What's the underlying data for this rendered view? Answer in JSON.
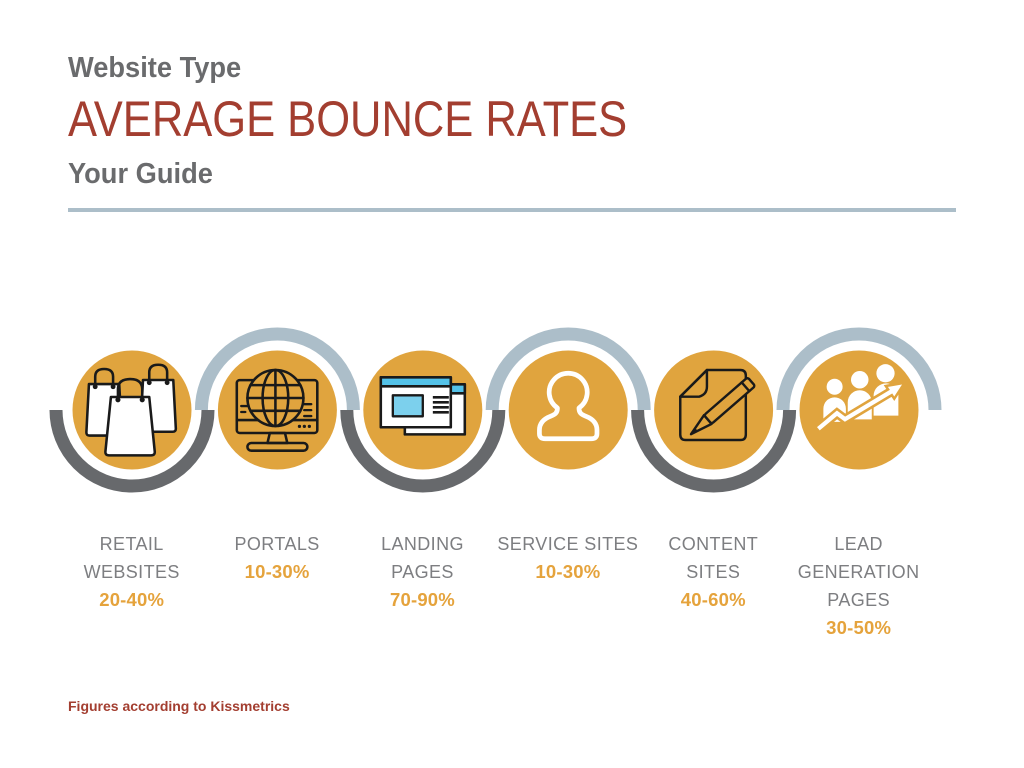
{
  "header": {
    "eyebrow": "Website Type",
    "title": "AVERAGE BOUNCE RATES",
    "subtitle": "Your Guide"
  },
  "footer": {
    "source_note": "Figures according to Kissmetrics"
  },
  "colors": {
    "accent_gold": "#E0A43E",
    "title_red": "#A33E30",
    "heading_gray": "#6A6B6D",
    "label_gray": "#7D7E81",
    "arc_dark": "#67696C",
    "arc_light": "#ACBEC9",
    "icon_blue": "#54C2E8",
    "icon_blue_light": "#7CD0ED"
  },
  "chart_data": {
    "type": "table",
    "title": "Average Bounce Rates by Website Type",
    "categories": [
      "Retail Websites",
      "Portals",
      "Landing Pages",
      "Service Sites",
      "Content Sites",
      "Lead Generation Pages"
    ],
    "values": [
      [
        20,
        40
      ],
      [
        10,
        30
      ],
      [
        70,
        90
      ],
      [
        10,
        30
      ],
      [
        40,
        60
      ],
      [
        30,
        50
      ]
    ],
    "unit": "%",
    "source": "Kissmetrics"
  },
  "items": [
    {
      "label_lines": [
        "RETAIL",
        "WEBSITES"
      ],
      "rate": "20-40%",
      "icon": "shopping-bags-icon",
      "arc": "bottom"
    },
    {
      "label_lines": [
        "PORTALS"
      ],
      "rate": "10-30%",
      "icon": "desktop-globe-icon",
      "arc": "top"
    },
    {
      "label_lines": [
        "LANDING",
        "PAGES"
      ],
      "rate": "70-90%",
      "icon": "browser-windows-icon",
      "arc": "bottom"
    },
    {
      "label_lines": [
        "SERVICE SITES"
      ],
      "rate": "10-30%",
      "icon": "person-icon",
      "arc": "top"
    },
    {
      "label_lines": [
        "CONTENT",
        "SITES"
      ],
      "rate": "40-60%",
      "icon": "document-pencil-icon",
      "arc": "bottom"
    },
    {
      "label_lines": [
        "LEAD",
        "GENERATION",
        "PAGES"
      ],
      "rate": "30-50%",
      "icon": "people-growth-icon",
      "arc": "top"
    }
  ]
}
